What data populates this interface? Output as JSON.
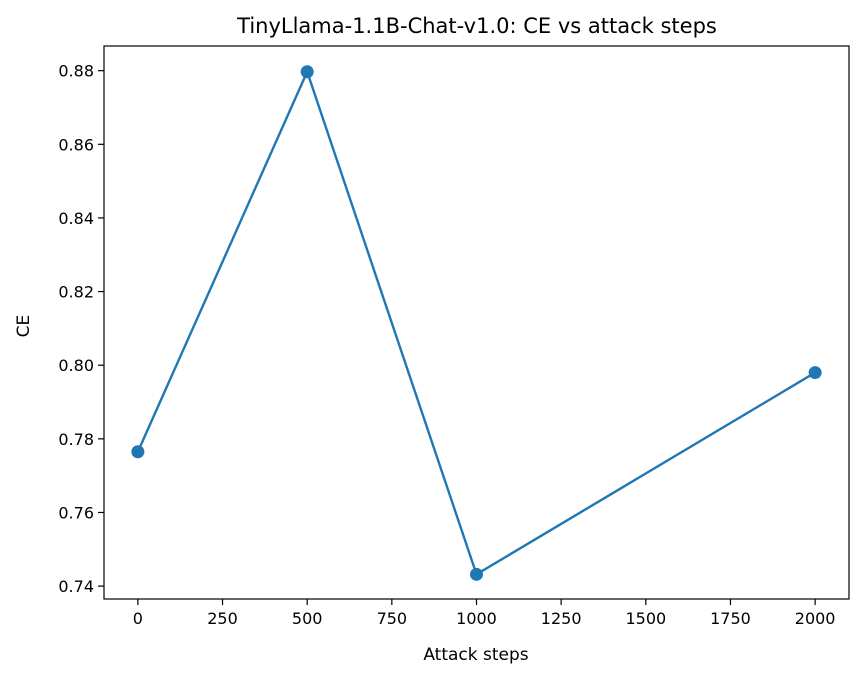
{
  "chart_data": {
    "type": "line",
    "title": "TinyLlama-1.1B-Chat-v1.0: CE vs attack steps",
    "xlabel": "Attack steps",
    "ylabel": "CE",
    "x": [
      0,
      500,
      1000,
      2000
    ],
    "series": [
      {
        "values": [
          0.7765,
          0.8797,
          0.7432,
          0.798
        ],
        "color": "#1f77b4",
        "marker": "circle"
      }
    ],
    "xlim": [
      -100,
      2100
    ],
    "ylim": [
      0.7365,
      0.8867
    ],
    "xticks": [
      0,
      250,
      500,
      750,
      1000,
      1250,
      1500,
      1750,
      2000
    ],
    "yticks": [
      0.74,
      0.76,
      0.78,
      0.8,
      0.82,
      0.84,
      0.86,
      0.88
    ],
    "ytick_labels": [
      "0.74",
      "0.76",
      "0.78",
      "0.80",
      "0.82",
      "0.84",
      "0.86",
      "0.88"
    ],
    "grid": false,
    "legend": "none"
  }
}
